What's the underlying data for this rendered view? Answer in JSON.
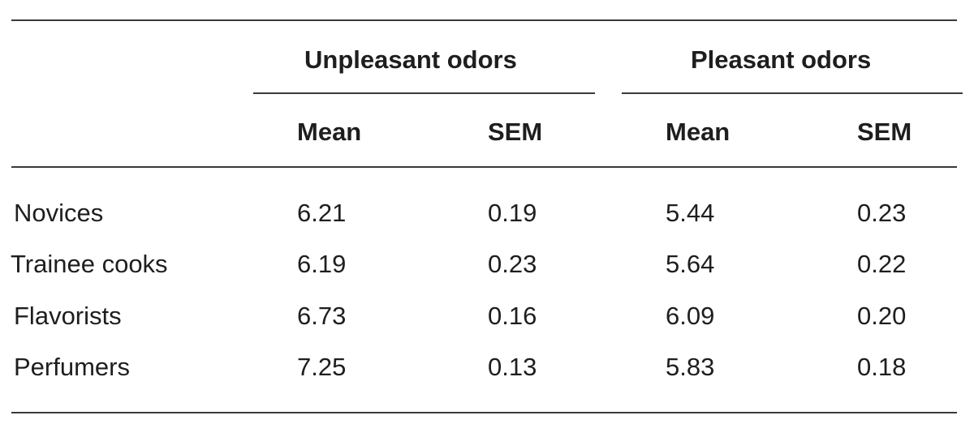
{
  "table": {
    "group_headers": [
      "Unpleasant odors",
      "Pleasant odors"
    ],
    "sub_headers": [
      "Mean",
      "SEM",
      "Mean",
      "SEM"
    ],
    "rows": [
      {
        "label": "Novices",
        "values": [
          "6.21",
          "0.19",
          "5.44",
          "0.23"
        ]
      },
      {
        "label": "Trainee cooks",
        "values": [
          "6.19",
          "0.23",
          "5.64",
          "0.22"
        ]
      },
      {
        "label": "Flavorists",
        "values": [
          "6.73",
          "0.16",
          "6.09",
          "0.20"
        ]
      },
      {
        "label": "Perfumers",
        "values": [
          "7.25",
          "0.13",
          "5.83",
          "0.18"
        ]
      }
    ]
  }
}
